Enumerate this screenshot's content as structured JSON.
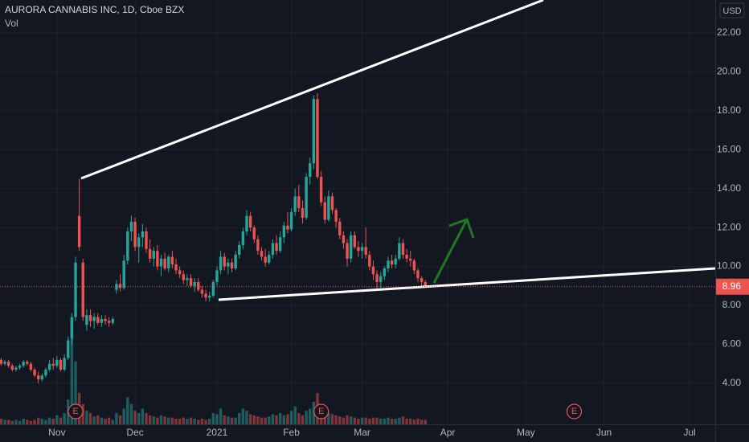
{
  "chart_data": {
    "type": "candlestick",
    "title": "AURORA CANNABIS INC, 1D, Cboe BZX",
    "volume_label": "Vol",
    "currency": "USD",
    "last_price": 8.96,
    "up_color": "#26a69a",
    "down_color": "#ef5350",
    "xlim": [
      -15.3,
      176.9
    ],
    "xticks": [
      {
        "value": 0,
        "label": "Nov"
      },
      {
        "value": 21,
        "label": "Dec"
      },
      {
        "value": 43,
        "label": "2021"
      },
      {
        "value": 63,
        "label": "Feb"
      },
      {
        "value": 82,
        "label": "Mar"
      },
      {
        "value": 105,
        "label": "Apr"
      },
      {
        "value": 126,
        "label": "May"
      },
      {
        "value": 147,
        "label": "Jun"
      },
      {
        "value": 170,
        "label": "Jul"
      }
    ],
    "ylim": [
      1.89,
      23.69
    ],
    "yticks": [
      {
        "value": 4,
        "label": "4.00"
      },
      {
        "value": 6,
        "label": "6.00"
      },
      {
        "value": 8,
        "label": "8.00"
      },
      {
        "value": 10,
        "label": "10.00"
      },
      {
        "value": 12,
        "label": "12.00"
      },
      {
        "value": 14,
        "label": "14.00"
      },
      {
        "value": 16,
        "label": "16.00"
      },
      {
        "value": 18,
        "label": "18.00"
      },
      {
        "value": 20,
        "label": "20.00"
      },
      {
        "value": 22,
        "label": "22.00"
      }
    ],
    "volume_ylim": [
      0,
      100
    ],
    "grid": true,
    "events": [
      {
        "x": 5,
        "label": "E"
      },
      {
        "x": 71,
        "label": "E"
      },
      {
        "x": 139,
        "label": "E"
      }
    ],
    "x": [
      -15,
      -14,
      -13,
      -12,
      -11,
      -10,
      -9,
      -8,
      -7,
      -6,
      -5,
      -4,
      -3,
      -2,
      -1,
      0,
      1,
      2,
      3,
      4,
      5,
      6,
      7,
      8,
      9,
      10,
      11,
      12,
      13,
      14,
      15,
      16,
      17,
      18,
      19,
      20,
      21,
      22,
      23,
      24,
      25,
      26,
      27,
      28,
      29,
      30,
      31,
      32,
      33,
      34,
      35,
      36,
      37,
      38,
      39,
      40,
      41,
      42,
      43,
      44,
      45,
      46,
      47,
      48,
      49,
      50,
      51,
      52,
      53,
      54,
      55,
      56,
      57,
      58,
      59,
      60,
      61,
      62,
      63,
      64,
      65,
      66,
      67,
      68,
      69,
      70,
      71,
      72,
      73,
      74,
      75,
      76,
      77,
      78,
      79,
      80,
      81,
      82,
      83,
      84,
      85,
      86,
      87,
      88,
      89,
      90,
      91,
      92,
      93,
      94,
      95,
      96,
      97,
      98,
      99
    ],
    "open": [
      5.2,
      5.0,
      5.1,
      4.9,
      4.7,
      4.8,
      4.9,
      5.1,
      5.0,
      4.7,
      4.4,
      4.2,
      4.4,
      4.7,
      5.0,
      4.9,
      5.2,
      4.7,
      5.3,
      6.3,
      7.4,
      12.6,
      10.2,
      7.0,
      7.5,
      7.2,
      7.4,
      7.1,
      7.3,
      7.2,
      7.1,
      8.8,
      9.1,
      8.9,
      10.3,
      11.8,
      12.3,
      11.0,
      11.5,
      11.8,
      10.9,
      10.4,
      10.8,
      10.0,
      10.4,
      9.9,
      10.5,
      10.1,
      9.8,
      9.6,
      9.3,
      9.4,
      9.0,
      9.2,
      8.8,
      8.6,
      8.4,
      8.5,
      9.2,
      9.8,
      10.5,
      10.0,
      10.2,
      9.9,
      10.6,
      11.1,
      11.8,
      12.6,
      12.0,
      11.4,
      10.8,
      10.5,
      10.2,
      10.6,
      11.2,
      10.8,
      11.5,
      12.1,
      11.9,
      12.8,
      13.6,
      13.0,
      12.5,
      14.6,
      15.3,
      18.6,
      14.6,
      13.3,
      12.4,
      13.6,
      12.9,
      12.3,
      11.6,
      11.2,
      10.4,
      11.6,
      11.0,
      10.8,
      11.0,
      10.6,
      10.0,
      9.6,
      9.2,
      9.5,
      9.9,
      10.3,
      10.1,
      10.4,
      11.2,
      10.6,
      10.4,
      10.3,
      9.8,
      9.4,
      9.2
    ],
    "high": [
      5.3,
      5.2,
      5.2,
      5.0,
      4.9,
      5.0,
      5.2,
      5.2,
      5.1,
      4.8,
      4.6,
      4.5,
      4.8,
      5.2,
      5.3,
      5.4,
      5.3,
      5.5,
      6.4,
      7.6,
      10.5,
      14.5,
      10.4,
      7.8,
      7.8,
      7.6,
      7.6,
      7.5,
      7.5,
      7.4,
      7.4,
      9.3,
      9.6,
      10.6,
      12.0,
      12.6,
      12.5,
      11.7,
      12.2,
      12.0,
      11.4,
      11.0,
      11.1,
      10.6,
      10.7,
      10.6,
      10.8,
      10.4,
      10.0,
      9.8,
      9.6,
      9.6,
      9.4,
      9.4,
      9.0,
      8.8,
      8.7,
      9.3,
      10.0,
      10.8,
      10.7,
      10.4,
      10.4,
      10.8,
      11.3,
      12.0,
      12.9,
      12.8,
      12.1,
      11.6,
      11.0,
      10.9,
      10.8,
      11.4,
      11.6,
      11.8,
      12.3,
      12.8,
      13.0,
      14.0,
      14.2,
      13.4,
      14.8,
      15.6,
      18.8,
      18.9,
      14.9,
      13.6,
      13.9,
      13.8,
      13.0,
      12.5,
      11.8,
      11.4,
      11.8,
      11.8,
      11.3,
      11.2,
      12.0,
      10.8,
      10.3,
      9.8,
      9.7,
      10.0,
      10.5,
      10.6,
      10.6,
      11.5,
      11.4,
      10.9,
      10.8,
      10.4,
      9.9,
      9.5,
      9.3
    ],
    "low": [
      4.9,
      4.9,
      4.8,
      4.6,
      4.6,
      4.7,
      4.8,
      4.9,
      4.6,
      4.3,
      4.0,
      4.1,
      4.3,
      4.6,
      4.7,
      4.8,
      4.6,
      4.6,
      5.2,
      6.0,
      7.2,
      10.8,
      7.2,
      6.7,
      6.9,
      6.8,
      7.0,
      6.9,
      7.0,
      6.9,
      7.0,
      8.6,
      8.7,
      8.8,
      10.1,
      11.3,
      10.8,
      10.2,
      11.0,
      10.7,
      10.2,
      10.0,
      9.8,
      9.5,
      9.8,
      9.7,
      9.9,
      9.6,
      9.4,
      9.1,
      9.0,
      8.9,
      8.7,
      8.7,
      8.4,
      8.2,
      8.2,
      8.4,
      9.0,
      9.6,
      9.8,
      9.6,
      9.7,
      9.8,
      10.4,
      10.9,
      11.6,
      11.8,
      11.2,
      10.6,
      10.3,
      10.0,
      10.1,
      10.4,
      10.6,
      10.7,
      11.2,
      11.7,
      11.8,
      12.6,
      12.8,
      12.2,
      12.4,
      14.2,
      15.0,
      14.5,
      13.1,
      12.2,
      12.3,
      12.7,
      12.0,
      11.4,
      10.9,
      10.0,
      10.2,
      10.9,
      10.5,
      10.4,
      10.4,
      9.8,
      9.3,
      8.8,
      8.9,
      9.3,
      9.7,
      9.9,
      9.9,
      10.3,
      10.4,
      10.2,
      10.0,
      9.6,
      9.2,
      8.9,
      8.9
    ],
    "close": [
      5.0,
      5.1,
      4.9,
      4.7,
      4.8,
      4.9,
      5.1,
      5.0,
      4.7,
      4.4,
      4.2,
      4.4,
      4.7,
      5.0,
      4.9,
      5.2,
      4.7,
      5.3,
      6.2,
      7.4,
      10.2,
      11.0,
      7.4,
      7.5,
      7.2,
      7.4,
      7.1,
      7.3,
      7.2,
      7.1,
      7.3,
      9.1,
      8.9,
      10.3,
      11.8,
      12.3,
      11.0,
      11.5,
      11.8,
      10.9,
      10.4,
      10.8,
      10.0,
      10.4,
      9.9,
      10.5,
      10.1,
      9.8,
      9.6,
      9.3,
      9.4,
      9.0,
      9.2,
      8.8,
      8.6,
      8.4,
      8.5,
      9.2,
      9.8,
      10.5,
      10.0,
      10.2,
      9.9,
      10.6,
      11.1,
      11.8,
      12.6,
      12.0,
      11.4,
      10.8,
      10.5,
      10.2,
      10.6,
      11.2,
      10.8,
      11.5,
      12.1,
      11.9,
      12.8,
      13.6,
      13.0,
      12.5,
      14.6,
      15.3,
      18.6,
      14.6,
      13.3,
      12.4,
      13.6,
      12.9,
      12.3,
      11.6,
      11.2,
      10.4,
      11.6,
      11.0,
      10.8,
      11.0,
      10.6,
      10.0,
      9.6,
      9.2,
      9.5,
      9.9,
      10.3,
      10.1,
      10.4,
      11.2,
      10.6,
      10.4,
      10.3,
      9.8,
      9.4,
      9.2,
      8.96
    ],
    "volume": [
      5,
      4,
      4,
      3,
      4,
      3,
      5,
      4,
      3,
      4,
      6,
      5,
      4,
      6,
      5,
      8,
      6,
      10,
      22,
      94,
      56,
      28,
      18,
      12,
      10,
      7,
      8,
      6,
      5,
      6,
      4,
      10,
      8,
      14,
      24,
      18,
      12,
      10,
      14,
      10,
      8,
      7,
      6,
      8,
      7,
      6,
      6,
      5,
      5,
      6,
      5,
      6,
      5,
      4,
      5,
      4,
      5,
      10,
      9,
      14,
      8,
      7,
      6,
      6,
      10,
      14,
      12,
      9,
      8,
      7,
      6,
      6,
      7,
      9,
      8,
      10,
      8,
      9,
      12,
      16,
      10,
      8,
      12,
      14,
      20,
      28,
      16,
      12,
      10,
      9,
      8,
      7,
      6,
      8,
      7,
      6,
      5,
      6,
      6,
      5,
      6,
      6,
      5,
      5,
      6,
      5,
      5,
      6,
      7,
      5,
      5,
      4,
      5,
      4,
      4
    ]
  }
}
